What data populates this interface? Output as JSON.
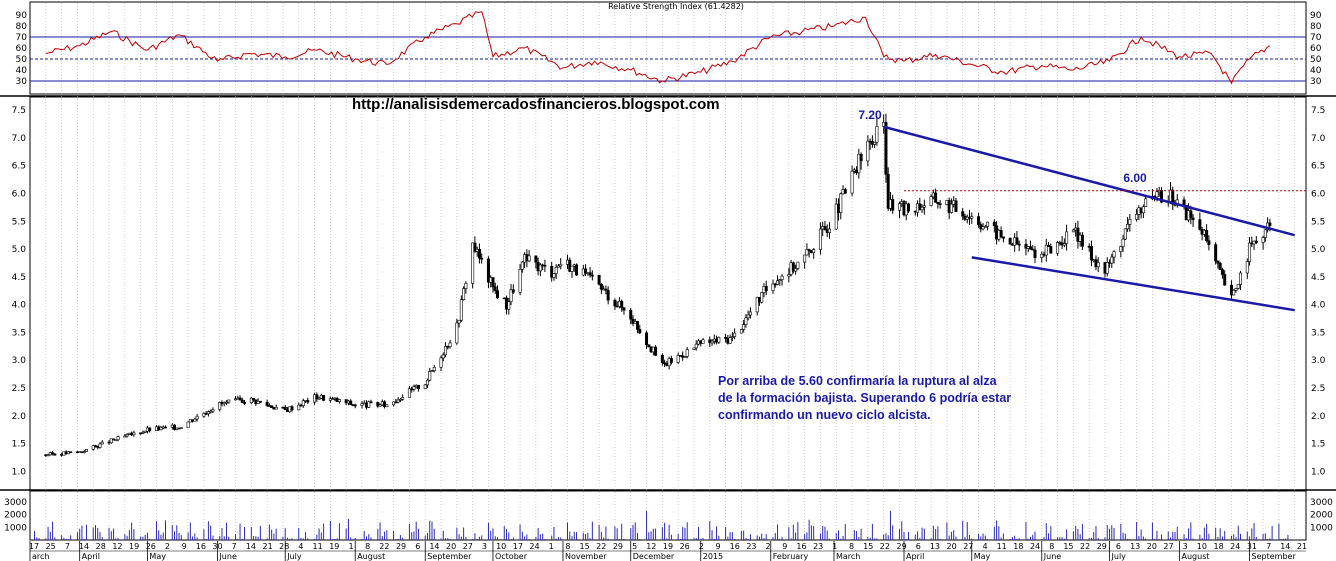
{
  "chart_data": [
    {
      "type": "line",
      "panel": "rsi",
      "title": "Relative Strength Index (61.4282)",
      "ylim": [
        20,
        100
      ],
      "y_ticks": [
        30,
        40,
        50,
        60,
        70,
        80,
        90
      ],
      "reference_lines": [
        70,
        50,
        30
      ],
      "colors": {
        "line": "#c00000",
        "reference": "#1a1aa6"
      },
      "series": [
        {
          "x": [
            "2014-03-17",
            "2014-04-01",
            "2014-04-15",
            "2014-05-01",
            "2014-05-15",
            "2014-06-01",
            "2014-06-15",
            "2014-07-01",
            "2014-07-15",
            "2014-08-01",
            "2014-08-15",
            "2014-09-01",
            "2014-09-15",
            "2014-09-26",
            "2014-10-01",
            "2014-10-15",
            "2014-11-01",
            "2014-11-15",
            "2014-12-01",
            "2014-12-15",
            "2015-01-01",
            "2015-01-15",
            "2015-02-01",
            "2015-02-15",
            "2015-03-01",
            "2015-03-15",
            "2015-03-23",
            "2015-04-01",
            "2015-04-15",
            "2015-05-01",
            "2015-05-15",
            "2015-06-01",
            "2015-06-15",
            "2015-07-01",
            "2015-07-15",
            "2015-08-01",
            "2015-08-15",
            "2015-08-24",
            "2015-09-01",
            "2015-09-10"
          ],
          "values": [
            55,
            62,
            75,
            58,
            72,
            48,
            55,
            52,
            58,
            50,
            45,
            70,
            82,
            93,
            52,
            60,
            42,
            48,
            40,
            30,
            38,
            48,
            70,
            75,
            80,
            88,
            52,
            48,
            54,
            45,
            38,
            44,
            40,
            48,
            70,
            52,
            55,
            28,
            50,
            62
          ]
        }
      ]
    },
    {
      "type": "line",
      "panel": "price",
      "style": "ohlc",
      "title": "",
      "y_ticks": [
        "1.0",
        "1.5",
        "2.0",
        "2.5",
        "3.0",
        "3.5",
        "4.0",
        "4.5",
        "5.0",
        "5.5",
        "6.0",
        "6.5",
        "7.0",
        "7.5"
      ],
      "ylim": [
        0.7,
        7.7
      ],
      "colors": {
        "bars": "#000000",
        "trendline": "#1a1aa6",
        "resistance": "#c00000"
      },
      "series": [
        {
          "x": [
            "2014-03-17",
            "2014-04-01",
            "2014-04-15",
            "2014-05-01",
            "2014-05-15",
            "2014-06-01",
            "2014-06-15",
            "2014-07-01",
            "2014-07-15",
            "2014-08-01",
            "2014-08-15",
            "2014-09-01",
            "2014-09-15",
            "2014-09-22",
            "2014-10-01",
            "2014-10-07",
            "2014-10-15",
            "2014-10-27",
            "2014-11-01",
            "2014-11-15",
            "2014-12-01",
            "2014-12-15",
            "2015-01-01",
            "2015-01-15",
            "2015-02-01",
            "2015-02-15",
            "2015-03-01",
            "2015-03-15",
            "2015-03-23",
            "2015-03-25",
            "2015-04-01",
            "2015-04-15",
            "2015-05-01",
            "2015-05-15",
            "2015-06-01",
            "2015-06-15",
            "2015-06-29",
            "2015-07-13",
            "2015-07-27",
            "2015-08-10",
            "2015-08-24",
            "2015-09-01",
            "2015-09-10"
          ],
          "values": [
            1.3,
            1.35,
            1.55,
            1.75,
            1.8,
            2.2,
            2.3,
            2.1,
            2.35,
            2.2,
            2.2,
            2.6,
            3.6,
            5.1,
            4.3,
            4.0,
            4.8,
            4.6,
            4.8,
            4.4,
            3.8,
            2.9,
            3.3,
            3.4,
            4.4,
            4.8,
            5.6,
            6.8,
            7.2,
            5.8,
            5.7,
            5.9,
            5.6,
            5.2,
            4.9,
            5.3,
            4.6,
            5.7,
            6.0,
            5.4,
            4.1,
            5.0,
            5.4
          ]
        }
      ],
      "trendlines": [
        {
          "name": "resistencia",
          "from": [
            "2015-03-23",
            7.2
          ],
          "to": [
            "2015-09-21",
            5.25
          ]
        },
        {
          "name": "soporte",
          "from": [
            "2015-05-01",
            4.85
          ],
          "to": [
            "2015-09-21",
            3.9
          ]
        }
      ],
      "horizontal_levels": [
        6.05
      ],
      "annotations": [
        "7.20",
        "6.00"
      ]
    },
    {
      "type": "bar",
      "panel": "volume",
      "title": "",
      "y_ticks": [
        "1000",
        "2000",
        "3000"
      ],
      "ylim": [
        0,
        3800
      ],
      "colors": {
        "bars": "#2a2ab8"
      }
    }
  ],
  "watermark": "http://analisisdemercadosfinancieros.blogspot.com",
  "peak_labels": {
    "high": "7.20",
    "retest": "6.00"
  },
  "note_lines": [
    "Por arriba de 5.60 confirmaría la ruptura al alza",
    "de la formación bajista. Superando 6 podría estar",
    "confirmando un nuevo ciclo alcista."
  ],
  "x_axis": {
    "months": [
      "arch",
      "April",
      "May",
      "June",
      "July",
      "August",
      "September",
      "October",
      "November",
      "December",
      "2015",
      "February",
      "March",
      "April",
      "May",
      "June",
      "July",
      "August",
      "September"
    ],
    "days": [
      "17",
      "25",
      "7",
      "14",
      "28",
      "12",
      "19",
      "26",
      "2",
      "9",
      "16",
      "30",
      "7",
      "14",
      "21",
      "28",
      "4",
      "11",
      "19",
      "1",
      "8",
      "22",
      "29",
      "6",
      "14",
      "20",
      "27",
      "3",
      "10",
      "17",
      "24",
      "1",
      "8",
      "15",
      "22",
      "29",
      "5",
      "12",
      "19",
      "26",
      "2",
      "9",
      "16",
      "23",
      "2",
      "9",
      "16",
      "23",
      "1",
      "8",
      "15",
      "22",
      "29",
      "6",
      "13",
      "20",
      "27",
      "4",
      "11",
      "18",
      "24",
      "8",
      "15",
      "22",
      "29",
      "6",
      "13",
      "20",
      "27",
      "3",
      "10",
      "18",
      "24",
      "31",
      "7",
      "14",
      "21"
    ]
  }
}
